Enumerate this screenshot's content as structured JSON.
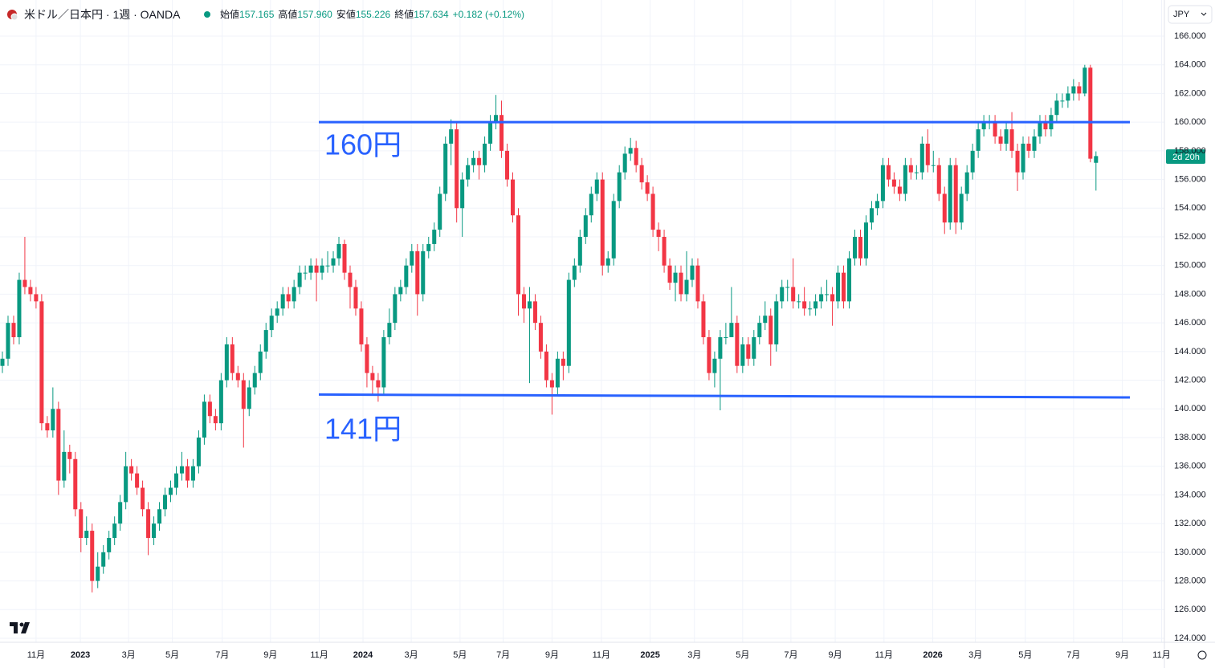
{
  "header": {
    "symbol": "米ドル／日本円 · 1週 · OANDA",
    "open_label": "始値",
    "open": "157.165",
    "high_label": "高値",
    "high": "157.960",
    "low_label": "安値",
    "low": "155.226",
    "close_label": "終値",
    "close": "157.634",
    "change": "+0.182 (+0.12%)",
    "currency": "JPY",
    "countdown": "2d 20h"
  },
  "chart_data": {
    "type": "candlestick",
    "up_color": "#089981",
    "down_color": "#f23645",
    "grid": true,
    "ylim": [
      123.72,
      168.52
    ],
    "yticks": [
      {
        "value": 124,
        "label": "124.000"
      },
      {
        "value": 126,
        "label": "126.000"
      },
      {
        "value": 128,
        "label": "128.000"
      },
      {
        "value": 130,
        "label": "130.000"
      },
      {
        "value": 132,
        "label": "132.000"
      },
      {
        "value": 134,
        "label": "134.000"
      },
      {
        "value": 136,
        "label": "136.000"
      },
      {
        "value": 138,
        "label": "138.000"
      },
      {
        "value": 140,
        "label": "140.000"
      },
      {
        "value": 142,
        "label": "142.000"
      },
      {
        "value": 144,
        "label": "144.000"
      },
      {
        "value": 146,
        "label": "146.000"
      },
      {
        "value": 148,
        "label": "148.000"
      },
      {
        "value": 150,
        "label": "150.000"
      },
      {
        "value": 152,
        "label": "152.000"
      },
      {
        "value": 154,
        "label": "154.000"
      },
      {
        "value": 156,
        "label": "156.000"
      },
      {
        "value": 158,
        "label": "158.000"
      },
      {
        "value": 160,
        "label": "160.000"
      },
      {
        "value": 162,
        "label": "162.000"
      },
      {
        "value": 164,
        "label": "164.000"
      },
      {
        "value": 166,
        "label": "166.000"
      }
    ],
    "xlim": [
      -0.43,
      207.2
    ],
    "xticks": [
      {
        "value": 6,
        "label": "11月"
      },
      {
        "value": 13.9,
        "label": "2023"
      },
      {
        "value": 22.5,
        "label": "3月"
      },
      {
        "value": 30.3,
        "label": "5月"
      },
      {
        "value": 39.2,
        "label": "7月"
      },
      {
        "value": 47.8,
        "label": "9月"
      },
      {
        "value": 56.5,
        "label": "11月"
      },
      {
        "value": 64.3,
        "label": "2024"
      },
      {
        "value": 72.9,
        "label": "3月"
      },
      {
        "value": 81.6,
        "label": "5月"
      },
      {
        "value": 89.3,
        "label": "7月"
      },
      {
        "value": 98,
        "label": "9月"
      },
      {
        "value": 106.8,
        "label": "11月"
      },
      {
        "value": 115.5,
        "label": "2025"
      },
      {
        "value": 123.4,
        "label": "3月"
      },
      {
        "value": 132,
        "label": "5月"
      },
      {
        "value": 140.6,
        "label": "7月"
      },
      {
        "value": 148.5,
        "label": "9月"
      },
      {
        "value": 157.2,
        "label": "11月"
      },
      {
        "value": 165.9,
        "label": "2026"
      },
      {
        "value": 173.5,
        "label": "3月"
      },
      {
        "value": 182.4,
        "label": "5月"
      },
      {
        "value": 191,
        "label": "7月"
      },
      {
        "value": 199.7,
        "label": "9月"
      },
      {
        "value": 206.7,
        "label": "11月"
      }
    ],
    "hlines": [
      {
        "label": "160円",
        "color": "#2962ff",
        "values": [
          160,
          160
        ]
      },
      {
        "label": "141円",
        "color": "#2962ff",
        "values": [
          141,
          140.8
        ]
      }
    ],
    "ohlc": [
      [
        143,
        144,
        142.5,
        143.5
      ],
      [
        143.5,
        146.5,
        143,
        146
      ],
      [
        146,
        146.5,
        144.5,
        145
      ],
      [
        145,
        149.5,
        144.5,
        149
      ],
      [
        149,
        152,
        148,
        148.5
      ],
      [
        148.5,
        149,
        147.5,
        148
      ],
      [
        148,
        148.5,
        147,
        147.5
      ],
      [
        147.5,
        148,
        138.5,
        139
      ],
      [
        139,
        139.5,
        138,
        138.5
      ],
      [
        138.5,
        141.5,
        138,
        140
      ],
      [
        140,
        140.5,
        134,
        135
      ],
      [
        135,
        138.5,
        134.5,
        137
      ],
      [
        137,
        137.5,
        135.5,
        136.5
      ],
      [
        136.5,
        137,
        132.5,
        133
      ],
      [
        133,
        133.5,
        130,
        131
      ],
      [
        131,
        132.5,
        130.5,
        131.5
      ],
      [
        131.5,
        132,
        127.2,
        128
      ],
      [
        128,
        130,
        127.5,
        129
      ],
      [
        129,
        130.5,
        128.5,
        130
      ],
      [
        130,
        131.5,
        129.5,
        131
      ],
      [
        131,
        132.5,
        130.5,
        132
      ],
      [
        132,
        134,
        131.5,
        133.5
      ],
      [
        133.5,
        137,
        133,
        136
      ],
      [
        136,
        136.5,
        135,
        135.5
      ],
      [
        135.5,
        136,
        134,
        134.5
      ],
      [
        134.5,
        135,
        132.5,
        133
      ],
      [
        133,
        133.5,
        129.8,
        131
      ],
      [
        131,
        132.5,
        130.5,
        132
      ],
      [
        132,
        133.5,
        131.5,
        133
      ],
      [
        133,
        134.5,
        132.5,
        134
      ],
      [
        134,
        135,
        133.5,
        134.5
      ],
      [
        134.5,
        136,
        134,
        135.5
      ],
      [
        135.5,
        137,
        135,
        136
      ],
      [
        136,
        136.5,
        134.5,
        135
      ],
      [
        135,
        136.5,
        134.5,
        136
      ],
      [
        136,
        138.5,
        135.5,
        138
      ],
      [
        138,
        141,
        137.5,
        140.5
      ],
      [
        140.5,
        141,
        139,
        139.5
      ],
      [
        139.5,
        140,
        138.5,
        139
      ],
      [
        139,
        142.5,
        138.5,
        142
      ],
      [
        142,
        145,
        141.5,
        144.5
      ],
      [
        144.5,
        145,
        142,
        142.5
      ],
      [
        142.5,
        143,
        141.5,
        142
      ],
      [
        142,
        142.5,
        137.3,
        140
      ],
      [
        140,
        142,
        139.5,
        141.5
      ],
      [
        141.5,
        143,
        141,
        142.5
      ],
      [
        142.5,
        144.5,
        142,
        144
      ],
      [
        144,
        146,
        143.5,
        145.5
      ],
      [
        145.5,
        147,
        145,
        146.5
      ],
      [
        146.5,
        147.5,
        146,
        147
      ],
      [
        147,
        148.5,
        146.5,
        148
      ],
      [
        148,
        148.5,
        147,
        147.5
      ],
      [
        147.5,
        149,
        147,
        148.5
      ],
      [
        148.5,
        150,
        148,
        149.5
      ],
      [
        149.5,
        150,
        149,
        149.5
      ],
      [
        149.5,
        150.5,
        149,
        150
      ],
      [
        150,
        150.5,
        147.5,
        149.5
      ],
      [
        149.5,
        150.5,
        149,
        150
      ],
      [
        150,
        151,
        149.5,
        150
      ],
      [
        150,
        151,
        149.5,
        150.5
      ],
      [
        150.5,
        152,
        150,
        151.5
      ],
      [
        151.5,
        151.8,
        149,
        149.5
      ],
      [
        149.5,
        150,
        147,
        148.5
      ],
      [
        148.5,
        149,
        146.5,
        147
      ],
      [
        147,
        147.5,
        144,
        144.5
      ],
      [
        144.5,
        145,
        141.5,
        142.5
      ],
      [
        142.5,
        143,
        141,
        142
      ],
      [
        142,
        142.5,
        140.5,
        141.5
      ],
      [
        141.5,
        145.5,
        141,
        145
      ],
      [
        145,
        147,
        144.5,
        146
      ],
      [
        146,
        148.5,
        145.5,
        148
      ],
      [
        148,
        149,
        147.5,
        148.5
      ],
      [
        148.5,
        150.5,
        148,
        150
      ],
      [
        150,
        151.5,
        149.5,
        151
      ],
      [
        151,
        151.5,
        146.5,
        148
      ],
      [
        148,
        151.5,
        147.5,
        151
      ],
      [
        151,
        152,
        150.5,
        151.5
      ],
      [
        151.5,
        153,
        151,
        152.5
      ],
      [
        152.5,
        155.5,
        152,
        155
      ],
      [
        155,
        159,
        154.5,
        158.5
      ],
      [
        158.5,
        160.2,
        157,
        159.5
      ],
      [
        159.5,
        160,
        153,
        154
      ],
      [
        154,
        156.5,
        152,
        156
      ],
      [
        156,
        157.5,
        155.5,
        157
      ],
      [
        157,
        158,
        156.5,
        157.5
      ],
      [
        157.5,
        158,
        156,
        157
      ],
      [
        157,
        159,
        156.5,
        158.5
      ],
      [
        158.5,
        160.5,
        158,
        160
      ],
      [
        160,
        161.9,
        159.5,
        160.5
      ],
      [
        160.5,
        161.5,
        157.5,
        158
      ],
      [
        158,
        158.5,
        155.5,
        156
      ],
      [
        156,
        156.5,
        153,
        153.5
      ],
      [
        153.5,
        154,
        146.5,
        148
      ],
      [
        148,
        148.5,
        146,
        147
      ],
      [
        147,
        148.5,
        141.8,
        147.5
      ],
      [
        147.5,
        148,
        145.5,
        146
      ],
      [
        146,
        146.5,
        143.5,
        144
      ],
      [
        144,
        144.5,
        141.5,
        142
      ],
      [
        142,
        142.5,
        139.6,
        141.5
      ],
      [
        141.5,
        144,
        141,
        143.5
      ],
      [
        143.5,
        144,
        142,
        143
      ],
      [
        143,
        149.5,
        142.5,
        149
      ],
      [
        149,
        150.5,
        148.5,
        150
      ],
      [
        150,
        152.5,
        149.5,
        152
      ],
      [
        152,
        154,
        151.5,
        153.5
      ],
      [
        153.5,
        155.5,
        153,
        155
      ],
      [
        155,
        156.5,
        154.5,
        156
      ],
      [
        156,
        156.5,
        149.3,
        150
      ],
      [
        150,
        151,
        149.5,
        150.5
      ],
      [
        150.5,
        155,
        150,
        154.5
      ],
      [
        154.5,
        157,
        154,
        156.5
      ],
      [
        156.5,
        158.3,
        156,
        157.8
      ],
      [
        157.8,
        158.9,
        157.3,
        158.2
      ],
      [
        158.2,
        158.7,
        156.5,
        157
      ],
      [
        157,
        157.5,
        155.3,
        155.8
      ],
      [
        155.8,
        156.3,
        154.5,
        155
      ],
      [
        155,
        155.5,
        152,
        152.5
      ],
      [
        152.5,
        153,
        151,
        152
      ],
      [
        152,
        152.5,
        149.5,
        150
      ],
      [
        150,
        150.5,
        148.3,
        148.8
      ],
      [
        148.8,
        150,
        147.5,
        149.5
      ],
      [
        149.5,
        150,
        147.5,
        148
      ],
      [
        148,
        151,
        147.5,
        149
      ],
      [
        149,
        150.5,
        148.5,
        150
      ],
      [
        150,
        150.5,
        147,
        147.5
      ],
      [
        147.5,
        148,
        144.5,
        145
      ],
      [
        145,
        145.5,
        142,
        142.5
      ],
      [
        142.5,
        144,
        141.5,
        143.5
      ],
      [
        143.5,
        145.5,
        139.9,
        145
      ],
      [
        145,
        146,
        144.5,
        145
      ],
      [
        145,
        148.5,
        145,
        146
      ],
      [
        146,
        146.5,
        142.5,
        143
      ],
      [
        143,
        145,
        142.5,
        144.5
      ],
      [
        144.5,
        145,
        143,
        143.5
      ],
      [
        143.5,
        145.5,
        143,
        145
      ],
      [
        145,
        146.5,
        144.5,
        146
      ],
      [
        146,
        147.5,
        145.5,
        146.5
      ],
      [
        146.5,
        147,
        143,
        144.5
      ],
      [
        144.5,
        148,
        144,
        147.5
      ],
      [
        147.5,
        149,
        147,
        148.5
      ],
      [
        148.5,
        149,
        147.5,
        148.5
      ],
      [
        148.5,
        150.5,
        147,
        147.5
      ],
      [
        147.5,
        148,
        147,
        147.5
      ],
      [
        147.5,
        148.5,
        146.5,
        147
      ],
      [
        147,
        147.5,
        146.5,
        147
      ],
      [
        147,
        148,
        146.5,
        147.5
      ],
      [
        147.5,
        148.5,
        147,
        148
      ],
      [
        148,
        149,
        147.5,
        148
      ],
      [
        148,
        148.5,
        145.8,
        147.5
      ],
      [
        147.5,
        150,
        147,
        149.5
      ],
      [
        149.5,
        150,
        147,
        147.5
      ],
      [
        147.5,
        151,
        147,
        150.5
      ],
      [
        150.5,
        152.5,
        150,
        152
      ],
      [
        152,
        152.5,
        150,
        150.5
      ],
      [
        150.5,
        153.5,
        150,
        153
      ],
      [
        153,
        154.5,
        152.5,
        154
      ],
      [
        154,
        155,
        153.5,
        154.5
      ],
      [
        154.5,
        157.5,
        154,
        157
      ],
      [
        157,
        157.5,
        155.5,
        156
      ],
      [
        156,
        156.5,
        155,
        155.5
      ],
      [
        155.5,
        156,
        154.5,
        155
      ],
      [
        155,
        157.5,
        154.5,
        157
      ],
      [
        157,
        157.5,
        156,
        156.5
      ],
      [
        156.5,
        157,
        156,
        156.5
      ],
      [
        156.5,
        159,
        156,
        158.5
      ],
      [
        158.5,
        159.5,
        156.5,
        157
      ],
      [
        157,
        158,
        156.5,
        157
      ],
      [
        157,
        157.5,
        154.5,
        155
      ],
      [
        155,
        155.5,
        152.2,
        153
      ],
      [
        153,
        157.5,
        152.5,
        157
      ],
      [
        157,
        157.5,
        152.2,
        153
      ],
      [
        153,
        155.5,
        152.5,
        155
      ],
      [
        155,
        157,
        154.5,
        156.5
      ],
      [
        156.5,
        158.5,
        156,
        158
      ],
      [
        158,
        160,
        157.5,
        159.5
      ],
      [
        159.5,
        160.5,
        159,
        160
      ],
      [
        160,
        160.5,
        159.5,
        160
      ],
      [
        160,
        160.5,
        158.5,
        159
      ],
      [
        159,
        159.5,
        158,
        158.5
      ],
      [
        158.5,
        160,
        158,
        159.5
      ],
      [
        159.5,
        160.7,
        157.5,
        158
      ],
      [
        158,
        158.5,
        155.2,
        156.5
      ],
      [
        156.5,
        159,
        156,
        158.5
      ],
      [
        158.5,
        159,
        157.5,
        158
      ],
      [
        158,
        159.5,
        157.5,
        159
      ],
      [
        159,
        160.5,
        158.5,
        160
      ],
      [
        160,
        160.5,
        159,
        159.5
      ],
      [
        159.5,
        161,
        159,
        160.5
      ],
      [
        160.5,
        162,
        160,
        161.5
      ],
      [
        161.5,
        162,
        161,
        161.5
      ],
      [
        161.5,
        162.5,
        161,
        162
      ],
      [
        162,
        163,
        161.5,
        162.5
      ],
      [
        162.5,
        162.8,
        161.5,
        162
      ],
      [
        162,
        164,
        161.8,
        163.8
      ],
      [
        163.8,
        164,
        157.2,
        157.452
      ],
      [
        157.165,
        157.96,
        155.226,
        157.634
      ]
    ]
  }
}
